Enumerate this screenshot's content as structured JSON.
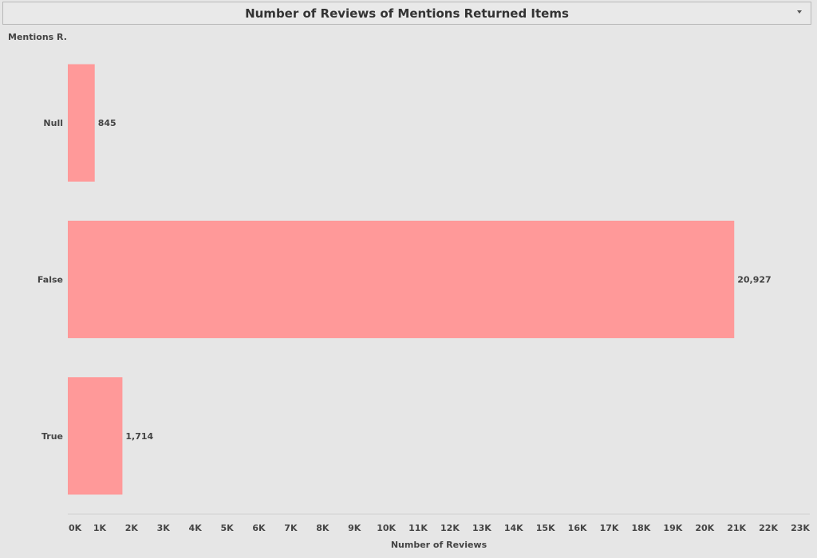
{
  "title": "Number of Reviews of Mentions Returned Items",
  "icons": {
    "title_menu": "chevron-down-icon"
  },
  "colors": {
    "bar": "#ff9999",
    "background": "#e6e6e6",
    "text": "#444444"
  },
  "chart_data": {
    "type": "bar",
    "orientation": "horizontal",
    "title": "Number of Reviews of Mentions Returned Items",
    "row_header": "Mentions R..",
    "xlabel": "Number of Reviews",
    "ylabel": "",
    "categories": [
      "Null",
      "False",
      "True"
    ],
    "values": [
      845,
      20927,
      1714
    ],
    "value_labels": [
      "845",
      "20,927",
      "1,714"
    ],
    "xlim": [
      0,
      23000
    ],
    "x_ticks": [
      0,
      1000,
      2000,
      3000,
      4000,
      5000,
      6000,
      7000,
      8000,
      9000,
      10000,
      11000,
      12000,
      13000,
      14000,
      15000,
      16000,
      17000,
      18000,
      19000,
      20000,
      21000,
      22000,
      23000
    ],
    "x_tick_labels": [
      "0K",
      "1K",
      "2K",
      "3K",
      "4K",
      "5K",
      "6K",
      "7K",
      "8K",
      "9K",
      "10K",
      "11K",
      "12K",
      "13K",
      "14K",
      "15K",
      "16K",
      "17K",
      "18K",
      "19K",
      "20K",
      "21K",
      "22K",
      "23K"
    ],
    "grid": false,
    "legend": "none"
  }
}
